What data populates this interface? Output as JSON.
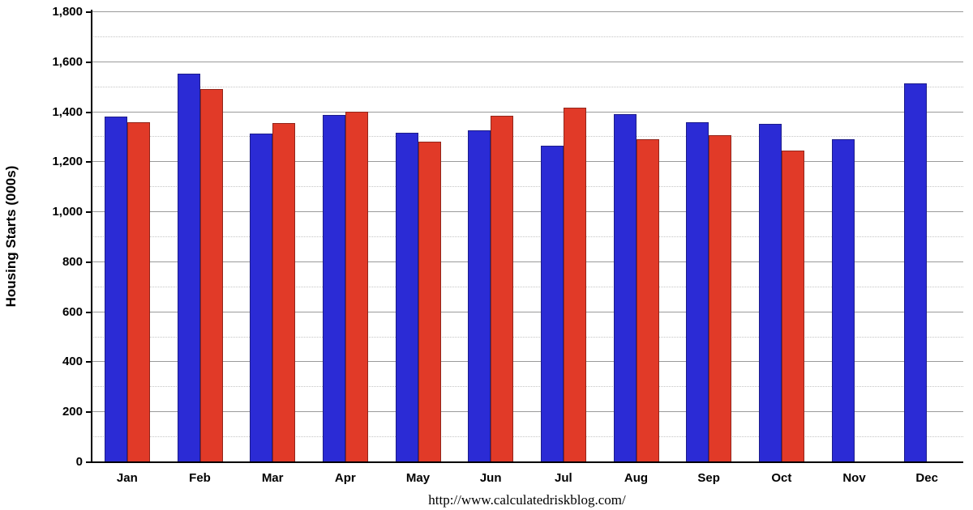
{
  "chart_data": {
    "type": "bar",
    "title": "",
    "xlabel": "",
    "ylabel": "Housing Starts (000s)",
    "ylim": [
      0,
      1800
    ],
    "y_major_step": 200,
    "y_minor_step": 100,
    "grid": "major-solid-minor-dotted",
    "legend_position": "none",
    "categories": [
      "Jan",
      "Feb",
      "Mar",
      "Apr",
      "May",
      "Jun",
      "Jul",
      "Aug",
      "Sep",
      "Oct",
      "Nov",
      "Dec"
    ],
    "series": [
      {
        "name": "blue",
        "color": "#2b2bd5",
        "values": [
          1380,
          1550,
          1310,
          1385,
          1315,
          1325,
          1262,
          1390,
          1355,
          1350,
          1290,
          1512
        ]
      },
      {
        "name": "red",
        "color": "#e13a28",
        "values": [
          1355,
          1490,
          1352,
          1398,
          1280,
          1382,
          1415,
          1290,
          1305,
          1242,
          null,
          null
        ]
      }
    ]
  },
  "footer": {
    "url": "http://www.calculatedriskblog.com/"
  }
}
